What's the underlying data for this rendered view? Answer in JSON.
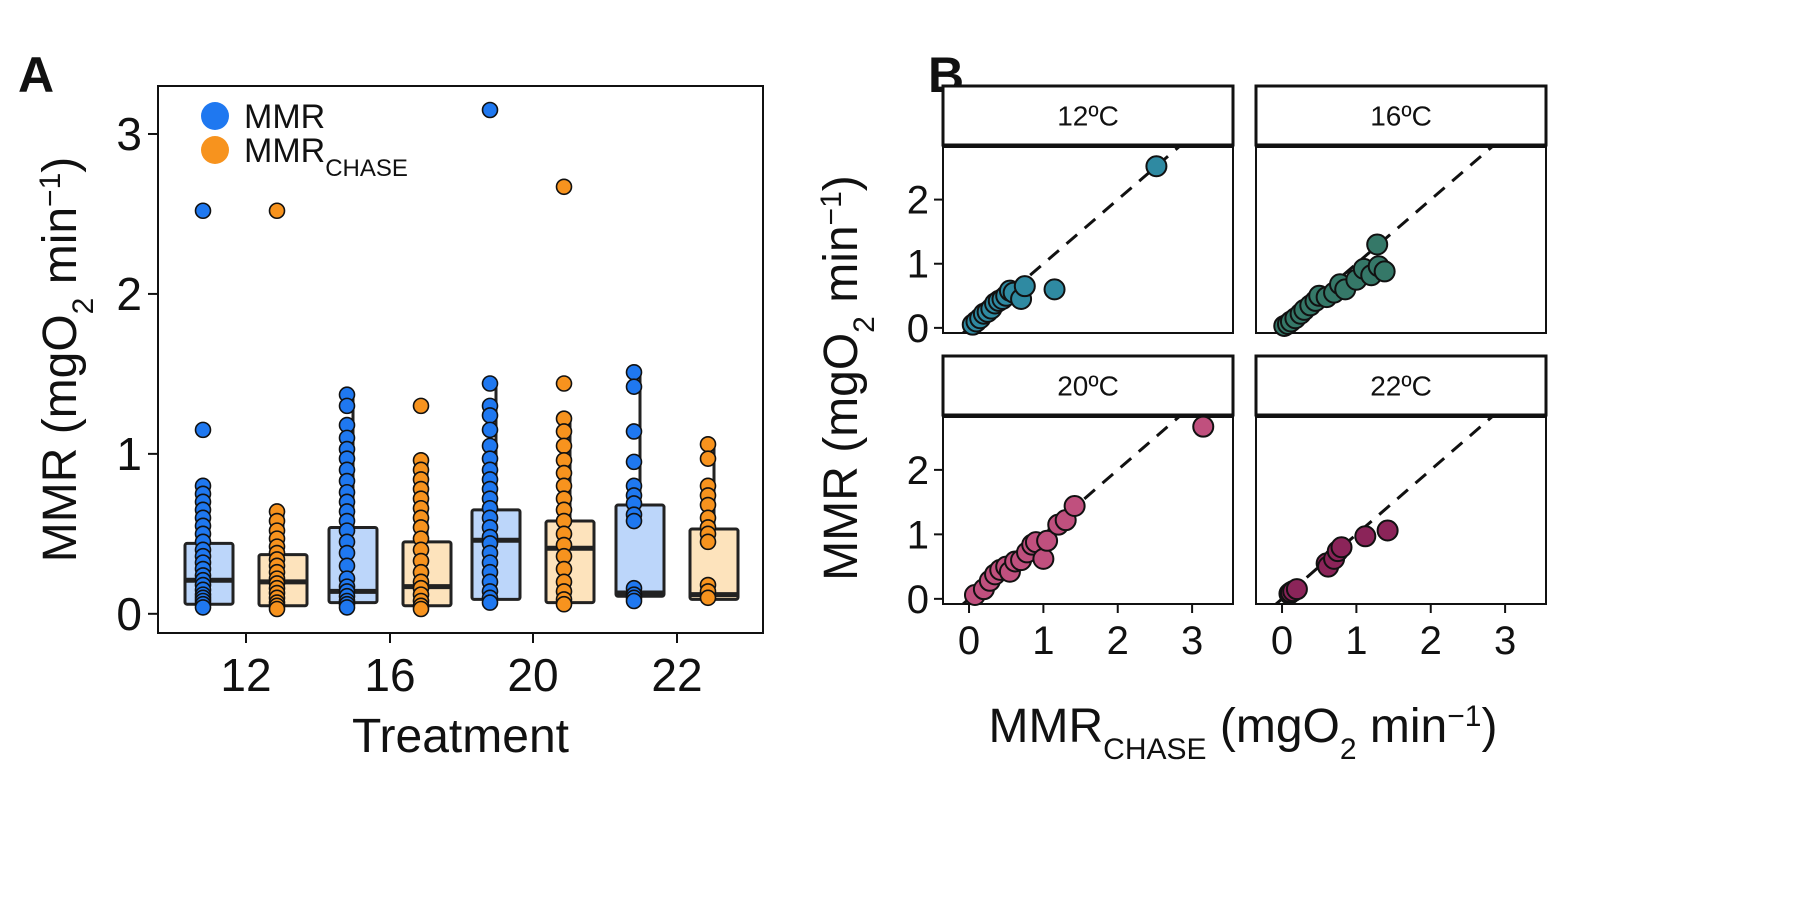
{
  "colors": {
    "mmr": "#1f78f0",
    "mmr_chase": "#f7931e",
    "mmr_box_fill": "#bcd6fa",
    "mmr_chase_box_fill": "#fde3bc",
    "c12": "#2f8aa2",
    "c16": "#357868",
    "c20": "#c0507e",
    "c22": "#8b2459"
  },
  "chart_data": [
    {
      "type": "box",
      "panel": "A",
      "xlabel": "Treatment",
      "ylabel": "MMR (mgO2 min−1)",
      "ylabel_parts": {
        "base": "MMR (mgO",
        "sub": "2",
        "mid": " min",
        "sup": "−1",
        "end": ")"
      },
      "ylim": [
        -0.12,
        3.3
      ],
      "yticks": [
        0,
        1,
        2,
        3
      ],
      "categories": [
        "12",
        "16",
        "20",
        "22"
      ],
      "legend": {
        "position": "top-left",
        "entries": [
          {
            "label": "MMR",
            "sub": "",
            "color": "#1f78f0"
          },
          {
            "label": "MMR",
            "sub": "CHASE",
            "color": "#f7931e"
          }
        ]
      },
      "series": [
        {
          "name": "MMR",
          "boxes": [
            {
              "q1": 0.06,
              "median": 0.21,
              "q3": 0.44,
              "whisker_low": 0.03,
              "whisker_high": 0.8
            },
            {
              "q1": 0.07,
              "median": 0.14,
              "q3": 0.54,
              "whisker_low": 0.03,
              "whisker_high": 1.37
            },
            {
              "q1": 0.09,
              "median": 0.46,
              "q3": 0.65,
              "whisker_low": 0.05,
              "whisker_high": 1.44
            },
            {
              "q1": 0.11,
              "median": 0.13,
              "q3": 0.68,
              "whisker_low": 0.07,
              "whisker_high": 1.51
            }
          ],
          "points": [
            [
              2.52,
              1.15,
              0.8,
              0.75,
              0.7,
              0.65,
              0.6,
              0.55,
              0.5,
              0.45,
              0.4,
              0.36,
              0.32,
              0.28,
              0.24,
              0.21,
              0.18,
              0.15,
              0.12,
              0.1,
              0.08,
              0.06,
              0.04
            ],
            [
              1.37,
              1.3,
              1.18,
              1.1,
              1.03,
              0.97,
              0.9,
              0.83,
              0.76,
              0.7,
              0.64,
              0.58,
              0.52,
              0.45,
              0.38,
              0.3,
              0.22,
              0.17,
              0.14,
              0.11,
              0.08,
              0.06,
              0.04
            ],
            [
              3.15,
              1.44,
              1.3,
              1.24,
              1.15,
              1.05,
              0.97,
              0.9,
              0.84,
              0.78,
              0.72,
              0.66,
              0.6,
              0.54,
              0.48,
              0.44,
              0.38,
              0.32,
              0.26,
              0.2,
              0.14,
              0.1,
              0.07
            ],
            [
              1.51,
              1.42,
              1.14,
              0.95,
              0.8,
              0.74,
              0.69,
              0.62,
              0.58,
              0.16,
              0.12,
              0.1,
              0.08
            ]
          ]
        },
        {
          "name": "MMR CHASE",
          "boxes": [
            {
              "q1": 0.05,
              "median": 0.2,
              "q3": 0.37,
              "whisker_low": 0.03,
              "whisker_high": 0.64
            },
            {
              "q1": 0.05,
              "median": 0.17,
              "q3": 0.45,
              "whisker_low": 0.03,
              "whisker_high": 0.96
            },
            {
              "q1": 0.07,
              "median": 0.41,
              "q3": 0.58,
              "whisker_low": 0.05,
              "whisker_high": 1.22
            },
            {
              "q1": 0.09,
              "median": 0.12,
              "q3": 0.53,
              "whisker_low": 0.08,
              "whisker_high": 1.06
            }
          ],
          "points": [
            [
              2.52,
              0.64,
              0.58,
              0.52,
              0.47,
              0.42,
              0.38,
              0.34,
              0.3,
              0.26,
              0.22,
              0.19,
              0.16,
              0.13,
              0.1,
              0.07,
              0.05,
              0.03
            ],
            [
              1.3,
              0.96,
              0.9,
              0.84,
              0.78,
              0.72,
              0.66,
              0.6,
              0.54,
              0.47,
              0.4,
              0.33,
              0.26,
              0.2,
              0.16,
              0.12,
              0.08,
              0.05,
              0.03
            ],
            [
              2.67,
              1.44,
              1.22,
              1.14,
              1.05,
              0.96,
              0.88,
              0.8,
              0.72,
              0.65,
              0.58,
              0.5,
              0.43,
              0.36,
              0.28,
              0.2,
              0.14,
              0.09,
              0.06
            ],
            [
              1.06,
              0.97,
              0.8,
              0.74,
              0.68,
              0.6,
              0.54,
              0.5,
              0.45,
              0.18,
              0.14,
              0.1
            ]
          ]
        }
      ]
    },
    {
      "type": "scatter",
      "panel": "B",
      "xlabel_parts": {
        "base": "MMR",
        "sub": "CHASE",
        "mid": " (mgO",
        "sub2": "2",
        "mid2": " min",
        "sup": "−1",
        "end": ")"
      },
      "ylabel_parts": {
        "base": "MMR (mgO",
        "sub": "2",
        "mid": " min",
        "sup": "−1",
        "end": ")"
      },
      "xlim": [
        -0.35,
        3.55
      ],
      "ylim": [
        -0.08,
        2.82
      ],
      "xticks": [
        0,
        1,
        2,
        3
      ],
      "yticks": [
        0,
        1,
        2
      ],
      "reference_line": "y = x (dashed)",
      "facets": [
        {
          "label": "12ºC",
          "color": "#2f8aa2",
          "x": [
            0.05,
            0.1,
            0.15,
            0.2,
            0.25,
            0.3,
            0.35,
            0.4,
            0.45,
            0.5,
            0.55,
            0.6,
            0.7,
            0.75,
            1.15,
            2.52
          ],
          "y": [
            0.05,
            0.1,
            0.15,
            0.22,
            0.25,
            0.3,
            0.38,
            0.42,
            0.45,
            0.5,
            0.58,
            0.55,
            0.45,
            0.65,
            0.6,
            2.52
          ]
        },
        {
          "label": "16ºC",
          "color": "#357868",
          "x": [
            0.03,
            0.08,
            0.12,
            0.18,
            0.25,
            0.3,
            0.38,
            0.45,
            0.5,
            0.6,
            0.7,
            0.78,
            0.85,
            1.0,
            1.1,
            1.2,
            1.28,
            1.3,
            1.38
          ],
          "y": [
            0.03,
            0.06,
            0.1,
            0.15,
            0.22,
            0.28,
            0.35,
            0.42,
            0.5,
            0.48,
            0.55,
            0.68,
            0.6,
            0.75,
            0.92,
            0.82,
            1.3,
            0.96,
            0.88
          ]
        },
        {
          "label": "20ºC",
          "color": "#c0507e",
          "x": [
            0.08,
            0.2,
            0.28,
            0.35,
            0.42,
            0.5,
            0.55,
            0.62,
            0.7,
            0.78,
            0.85,
            0.9,
            1.0,
            1.05,
            1.2,
            1.3,
            1.42,
            3.15
          ],
          "y": [
            0.06,
            0.15,
            0.28,
            0.38,
            0.45,
            0.5,
            0.42,
            0.58,
            0.6,
            0.72,
            0.84,
            0.88,
            0.62,
            0.9,
            1.15,
            1.22,
            1.44,
            2.67
          ]
        },
        {
          "label": "22ºC",
          "color": "#8b2459",
          "x": [
            0.1,
            0.12,
            0.15,
            0.2,
            0.6,
            0.62,
            0.7,
            0.75,
            0.8,
            1.12,
            1.42
          ],
          "y": [
            0.08,
            0.1,
            0.12,
            0.15,
            0.55,
            0.5,
            0.62,
            0.74,
            0.8,
            0.97,
            1.06
          ]
        }
      ]
    }
  ]
}
